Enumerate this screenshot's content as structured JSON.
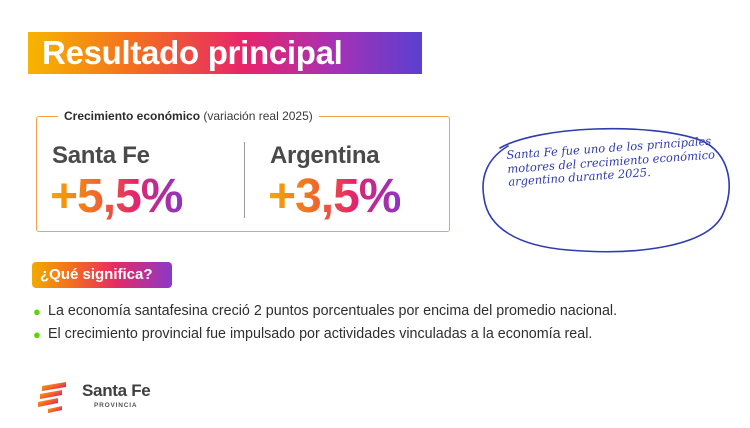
{
  "title": "Resultado principal",
  "comparison": {
    "caption_bold": "Crecimiento económico",
    "caption_rest": " (variación real 2025)",
    "regions": [
      {
        "name": "Santa Fe",
        "value": "+5,5%"
      },
      {
        "name": "Argentina",
        "value": "+3,5%"
      }
    ]
  },
  "note": "Santa Fe fue uno de los principales motores del crecimiento económico argentino durante 2025.",
  "meaning": {
    "label": "¿Qué significa?",
    "bullets": [
      "La economía santafesina creció 2 puntos porcentuales por encima del promedio nacional.",
      "El crecimiento provincial fue impulsado por actividades vinculadas a la economía real."
    ]
  },
  "logo": {
    "name": "Santa Fe",
    "subtitle": "PROVINCIA"
  },
  "colors": {
    "gradient": [
      "#f7b500",
      "#f36c21",
      "#e8246a",
      "#a531b5",
      "#5b3fd0"
    ],
    "bullet": "#5ed400",
    "note_ink": "#2f3bb0",
    "box_border": "#f2a14d"
  }
}
